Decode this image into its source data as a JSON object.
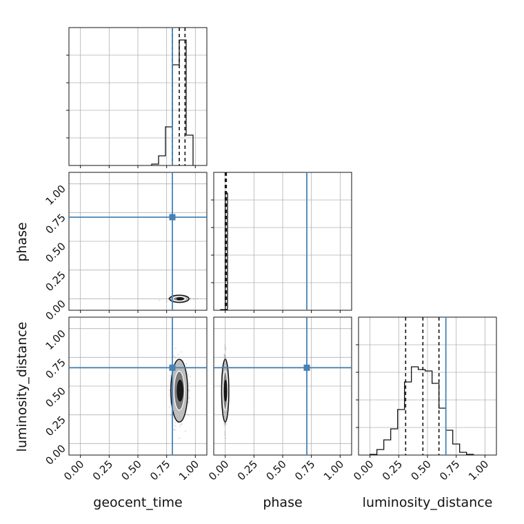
{
  "chart_data": {
    "type": "corner",
    "parameters": [
      "geocent_time",
      "phase",
      "luminosity_distance"
    ],
    "axis_range": [
      -0.1,
      1.1
    ],
    "tick_labels": [
      "0.00",
      "0.25",
      "0.50",
      "0.75",
      "1.00"
    ],
    "tick_values": [
      0,
      0.25,
      0.5,
      0.75,
      1.0
    ],
    "grid": true,
    "truth_color": "#4682b4",
    "truths": {
      "geocent_time": 0.8,
      "phase": 0.71,
      "luminosity_distance": 0.66
    },
    "histograms": {
      "geocent_time": {
        "bin_edges": [
          0.62,
          0.68,
          0.74,
          0.8,
          0.86,
          0.92,
          0.98
        ],
        "counts": [
          0.01,
          0.07,
          0.28,
          0.73,
          0.91,
          0.22
        ],
        "quantiles": [
          0.8,
          0.86,
          0.91
        ]
      },
      "phase": {
        "bin_edges": [
          -0.04,
          0.0,
          0.02
        ],
        "counts": [
          0.005,
          0.85
        ],
        "quantiles": [
          0.0,
          0.01
        ]
      },
      "luminosity_distance": {
        "bin_edges": [
          0.0,
          0.06,
          0.12,
          0.18,
          0.24,
          0.3,
          0.36,
          0.42,
          0.48,
          0.54,
          0.6,
          0.66,
          0.72,
          0.78,
          0.84,
          0.9
        ],
        "counts": [
          0.005,
          0.04,
          0.11,
          0.19,
          0.33,
          0.53,
          0.64,
          0.62,
          0.61,
          0.52,
          0.34,
          0.18,
          0.08,
          0.02,
          0.005
        ],
        "quantiles": [
          0.31,
          0.46,
          0.6
        ]
      }
    },
    "scatter_2d": [
      {
        "x": "geocent_time",
        "y": "phase",
        "center": [
          0.86,
          0.0
        ],
        "spread": [
          0.04,
          0.006
        ]
      },
      {
        "x": "geocent_time",
        "y": "luminosity_distance",
        "center": [
          0.86,
          0.46
        ],
        "spread": [
          0.035,
          0.13
        ]
      },
      {
        "x": "phase",
        "y": "luminosity_distance",
        "center": [
          0.0,
          0.46
        ],
        "spread": [
          0.005,
          0.13
        ]
      }
    ]
  }
}
